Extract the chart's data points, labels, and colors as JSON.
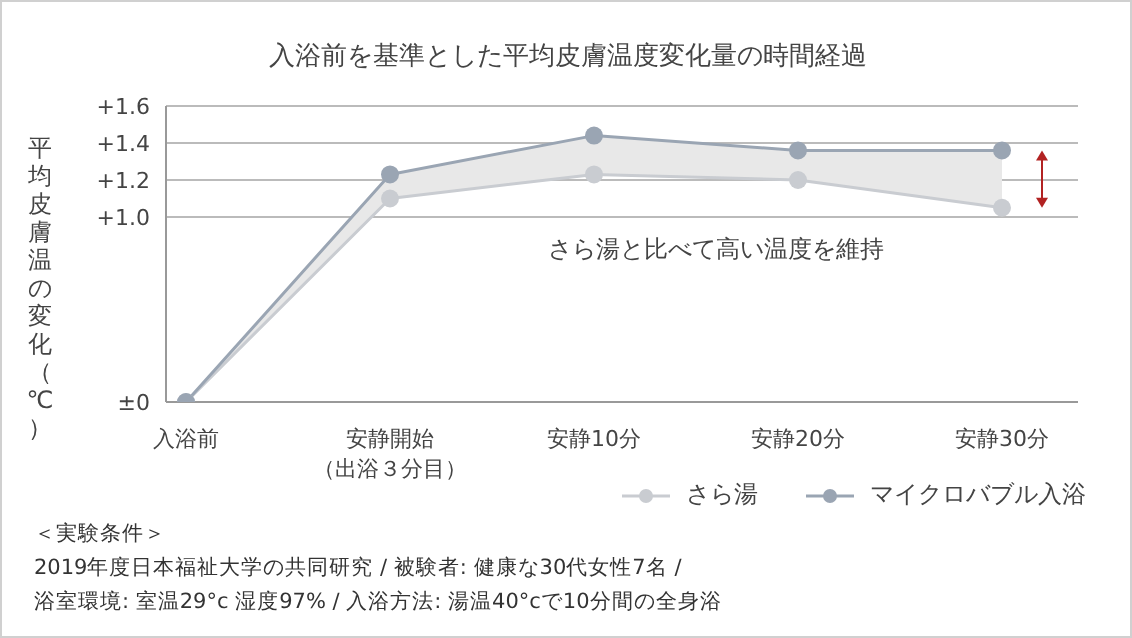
{
  "chart_data": {
    "type": "line",
    "title": "入浴前を基準とした平均皮膚温度変化量の時間経過",
    "ylabel": "平均皮膚温の変化（℃）",
    "categories": [
      "入浴前",
      "安静開始（出浴３分目）",
      "安静10分",
      "安静20分",
      "安静30分"
    ],
    "series": [
      {
        "name": "さら湯",
        "color": "#c9ccd1",
        "values": [
          0,
          1.1,
          1.23,
          1.2,
          1.05
        ]
      },
      {
        "name": "マイクロバブル入浴",
        "color": "#9aa5b3",
        "values": [
          0,
          1.23,
          1.44,
          1.36,
          1.36
        ],
        "lower": [
          0,
          1.1,
          1.23,
          1.2,
          1.05
        ],
        "upper": [
          0,
          1.23,
          1.44,
          1.36,
          1.36
        ]
      }
    ],
    "ylim": [
      0,
      1.6
    ],
    "yticks": [
      {
        "value": 0,
        "label": "±0"
      },
      {
        "value": 1.0,
        "label": "+1.0"
      },
      {
        "value": 1.2,
        "label": "+1.2"
      },
      {
        "value": 1.4,
        "label": "+1.4"
      },
      {
        "value": 1.6,
        "label": "+1.6"
      }
    ],
    "grid": "y",
    "legend": "bottom right",
    "marker": "circle",
    "line_style": "solid",
    "annotations": [
      "さら湯と比べて高い温度を維持",
      "＜実験条件＞",
      "2019年度日本福祉大学の共同研究 / 被験者: 健康な30代女性7名 /",
      "浴室環境: 室温29°c 湿度97% / 入浴方法: 湯温40°cで10分間の全身浴"
    ]
  }
}
